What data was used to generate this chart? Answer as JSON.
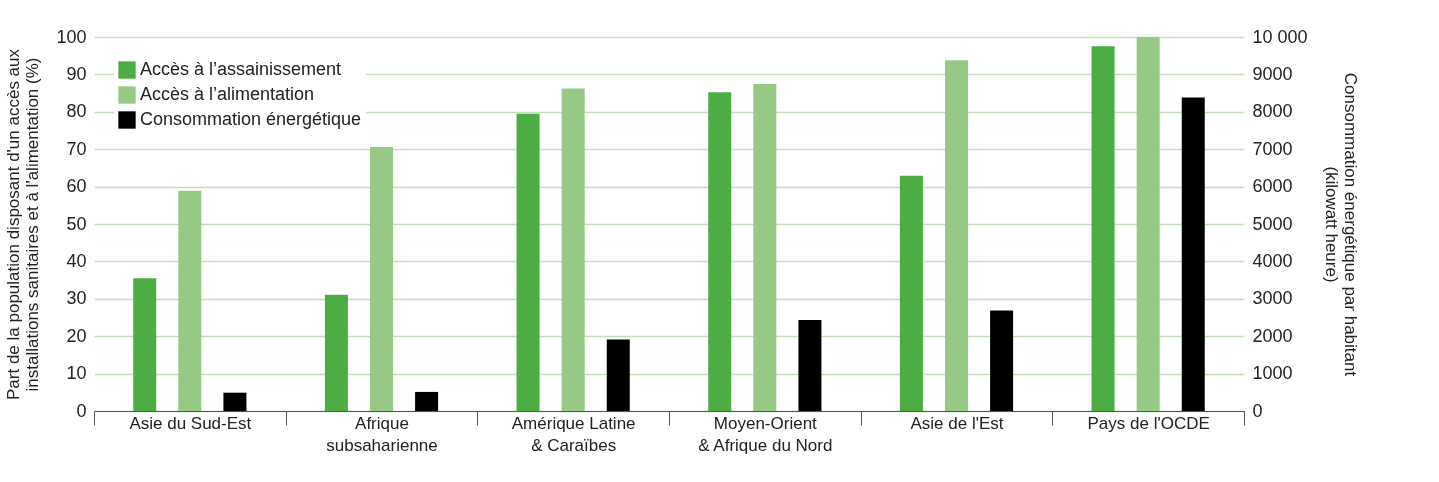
{
  "chart_data": {
    "type": "bar",
    "ylabel": "Part de la population disposant d'un accès aux installations sanitaires et à l'alimentation (%)",
    "y2label": "Consommation énergétique par habitant (kilowatt heure)",
    "categories": [
      "Asie du Sud-Est",
      "Afrique subsaharienne",
      "Amérique Latine & Caraïbes",
      "Moyen-Orient & Afrique du Nord",
      "Asie de l'Est",
      "Pays de l'OCDE"
    ],
    "series": [
      {
        "name": "Accès à l’assainissement",
        "color": "#4dac44",
        "values": [
          35.5,
          31.1,
          79.5,
          85.2,
          62.9,
          97.5
        ]
      },
      {
        "name": "Accès à l’alimentation",
        "color": "#96c886",
        "values": [
          58.9,
          70.6,
          86.2,
          87.4,
          93.8,
          100
        ]
      },
      {
        "name": "Consommation énergétique",
        "color": "#000000",
        "axis": "y2",
        "values": [
          490,
          510,
          1910,
          2430,
          2690,
          8380
        ]
      }
    ],
    "ylim": [
      0,
      100
    ],
    "yticks": [
      0,
      10,
      20,
      30,
      40,
      50,
      60,
      70,
      80,
      90,
      100
    ],
    "y2lim": [
      0,
      10000
    ],
    "y2ticks": [
      0,
      1000,
      2000,
      3000,
      4000,
      5000,
      6000,
      7000,
      8000,
      9000,
      {
        "value": 10000,
        "label": "10 000"
      }
    ],
    "grid": "y",
    "legend": "top left"
  }
}
